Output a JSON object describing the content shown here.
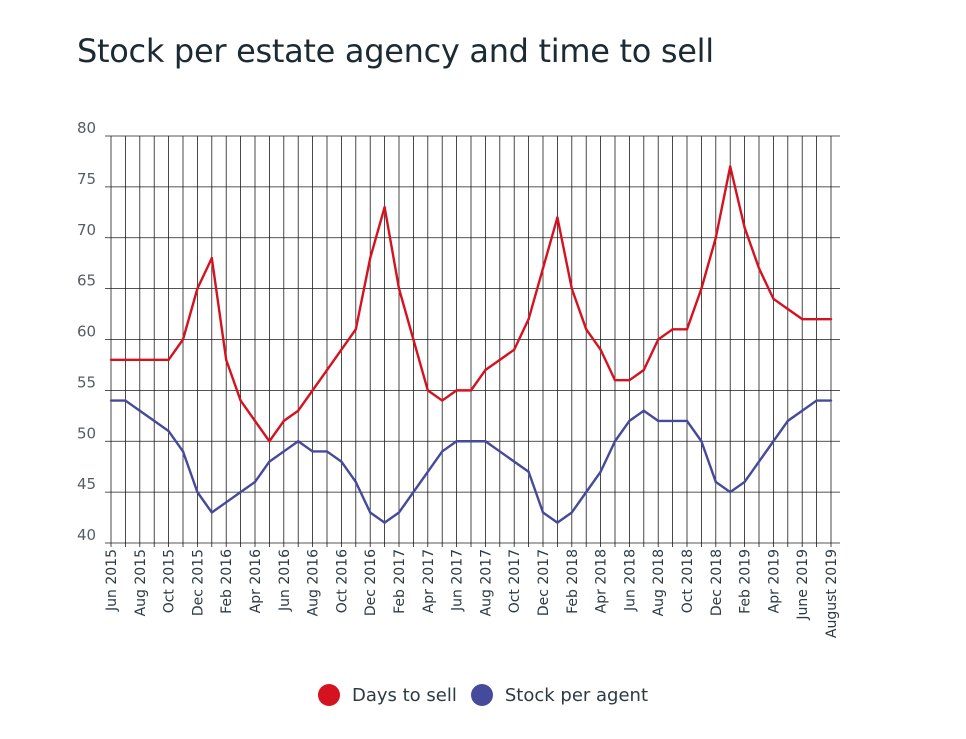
{
  "chart_data": {
    "type": "line",
    "title": "Stock per estate agency and time to sell",
    "xlabel": "",
    "ylabel": "",
    "ylim": [
      40,
      80
    ],
    "y_ticks": [
      "40",
      "45",
      "50",
      "55",
      "60",
      "65",
      "70",
      "75",
      "80"
    ],
    "x_tick_labels": [
      "Jun 2015",
      "Aug 2015",
      "Oct 2015",
      "Dec 2015",
      "Feb 2016",
      "Apr 2016",
      "Jun 2016",
      "Aug 2016",
      "Oct 2016",
      "Dec 2016",
      "Feb 2017",
      "Apr 2017",
      "Jun 2017",
      "Aug 2017",
      "Oct 2017",
      "Dec 2017",
      "Feb 2018",
      "Apr 2018",
      "Jun 2018",
      "Aug 2018",
      "Oct 2018",
      "Dec 2018",
      "Feb 2019",
      "Apr 2019",
      "June 2019",
      "August 2019"
    ],
    "x": [
      "Jun 2015",
      "Jul 2015",
      "Aug 2015",
      "Sep 2015",
      "Oct 2015",
      "Nov 2015",
      "Dec 2015",
      "Jan 2016",
      "Feb 2016",
      "Mar 2016",
      "Apr 2016",
      "May 2016",
      "Jun 2016",
      "Jul 2016",
      "Aug 2016",
      "Sep 2016",
      "Oct 2016",
      "Nov 2016",
      "Dec 2016",
      "Jan 2017",
      "Feb 2017",
      "Mar 2017",
      "Apr 2017",
      "May 2017",
      "Jun 2017",
      "Jul 2017",
      "Aug 2017",
      "Sep 2017",
      "Oct 2017",
      "Nov 2017",
      "Dec 2017",
      "Jan 2018",
      "Feb 2018",
      "Mar 2018",
      "Apr 2018",
      "May 2018",
      "Jun 2018",
      "Jul 2018",
      "Aug 2018",
      "Sep 2018",
      "Oct 2018",
      "Nov 2018",
      "Dec 2018",
      "Jan 2019",
      "Feb 2019",
      "Mar 2019",
      "Apr 2019",
      "May 2019",
      "June 2019",
      "Jul 2019",
      "August 2019"
    ],
    "series": [
      {
        "name": "Days to sell",
        "color": "#d5121f",
        "values": [
          58,
          58,
          58,
          58,
          58,
          60,
          65,
          68,
          58,
          54,
          52,
          50,
          52,
          53,
          55,
          57,
          59,
          61,
          68,
          73,
          65,
          60,
          55,
          54,
          55,
          55,
          57,
          58,
          59,
          62,
          67,
          72,
          65,
          61,
          59,
          56,
          56,
          57,
          60,
          61,
          61,
          65,
          70,
          77,
          71,
          67,
          64,
          63,
          62,
          62,
          62
        ]
      },
      {
        "name": "Stock per agent",
        "color": "#464a9a",
        "values": [
          54,
          54,
          53,
          52,
          51,
          49,
          45,
          43,
          44,
          45,
          46,
          48,
          49,
          50,
          49,
          49,
          48,
          46,
          43,
          42,
          43,
          45,
          47,
          49,
          50,
          50,
          50,
          49,
          48,
          47,
          43,
          42,
          43,
          45,
          47,
          50,
          52,
          53,
          52,
          52,
          52,
          50,
          46,
          45,
          46,
          48,
          50,
          52,
          53,
          54,
          54
        ]
      }
    ],
    "grid": true,
    "legend_position": "bottom-center"
  }
}
